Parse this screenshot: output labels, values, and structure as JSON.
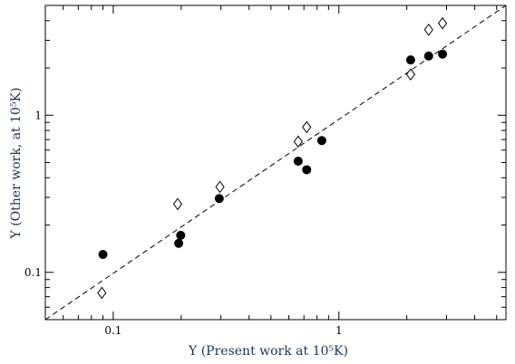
{
  "chart_data": {
    "type": "scatter",
    "x_scale": "log",
    "y_scale": "log",
    "xlim": [
      0.05,
      5.5
    ],
    "ylim": [
      0.05,
      5.0
    ],
    "xlabel": "Y (Present work at 10⁵K)",
    "ylabel": "Y (Other work, at 10⁵K)",
    "x_ticks": [
      {
        "value": 0.1,
        "label": "0.1"
      },
      {
        "value": 1,
        "label": "1"
      }
    ],
    "y_ticks": [
      {
        "value": 0.1,
        "label": "0.1"
      },
      {
        "value": 1,
        "label": "1"
      }
    ],
    "grid": false,
    "reference_line": {
      "style": "dashed",
      "from": [
        0.05,
        0.05
      ],
      "to": [
        5.5,
        5.0
      ]
    },
    "series": [
      {
        "marker": "filled-circle",
        "color": "#000000",
        "points": [
          {
            "x": 0.09,
            "y": 0.13
          },
          {
            "x": 0.195,
            "y": 0.153
          },
          {
            "x": 0.199,
            "y": 0.172
          },
          {
            "x": 0.295,
            "y": 0.295
          },
          {
            "x": 0.66,
            "y": 0.51
          },
          {
            "x": 0.72,
            "y": 0.45
          },
          {
            "x": 0.84,
            "y": 0.69
          },
          {
            "x": 2.08,
            "y": 2.25
          },
          {
            "x": 2.5,
            "y": 2.38
          },
          {
            "x": 2.88,
            "y": 2.45
          }
        ]
      },
      {
        "marker": "open-diamond",
        "color": "#000000",
        "points": [
          {
            "x": 0.089,
            "y": 0.074
          },
          {
            "x": 0.193,
            "y": 0.272
          },
          {
            "x": 0.297,
            "y": 0.35
          },
          {
            "x": 0.66,
            "y": 0.68
          },
          {
            "x": 0.72,
            "y": 0.84
          },
          {
            "x": 2.08,
            "y": 1.82
          },
          {
            "x": 2.5,
            "y": 3.5
          },
          {
            "x": 2.88,
            "y": 3.85
          }
        ]
      }
    ]
  }
}
